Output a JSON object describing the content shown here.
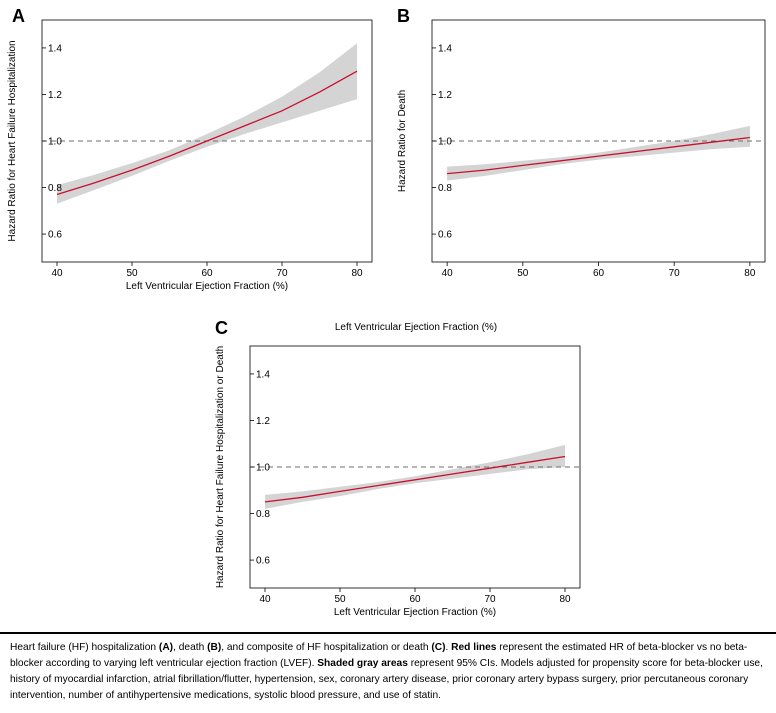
{
  "figure": {
    "floating_label": "Left Ventricular Ejection Fraction (%)"
  },
  "chart_data": [
    {
      "type": "line",
      "panel": "A",
      "xlabel": "Left Ventricular Ejection Fraction (%)",
      "ylabel": "Hazard Ratio for Heart Failure Hospitalization",
      "xlim": [
        38,
        82
      ],
      "ylim": [
        0.48,
        1.52
      ],
      "xticks": [
        40,
        50,
        60,
        70,
        80
      ],
      "yticks": [
        0.6,
        0.8,
        1.0,
        1.2,
        1.4
      ],
      "reference_line": 1.0,
      "series": [
        {
          "x": [
            40,
            45,
            50,
            55,
            60,
            65,
            70,
            75,
            80
          ],
          "y": [
            0.77,
            0.82,
            0.875,
            0.935,
            1.0,
            1.065,
            1.13,
            1.21,
            1.3
          ],
          "lower": [
            0.73,
            0.79,
            0.85,
            0.915,
            0.975,
            1.03,
            1.08,
            1.13,
            1.18
          ],
          "upper": [
            0.81,
            0.855,
            0.905,
            0.96,
            1.03,
            1.105,
            1.19,
            1.295,
            1.42
          ]
        }
      ]
    },
    {
      "type": "line",
      "panel": "B",
      "xlabel": "",
      "ylabel": "Hazard Ratio for Death",
      "xlim": [
        38,
        82
      ],
      "ylim": [
        0.48,
        1.52
      ],
      "xticks": [
        40,
        50,
        60,
        70,
        80
      ],
      "yticks": [
        0.6,
        0.8,
        1.0,
        1.2,
        1.4
      ],
      "reference_line": 1.0,
      "series": [
        {
          "x": [
            40,
            45,
            50,
            55,
            60,
            65,
            70,
            75,
            80
          ],
          "y": [
            0.86,
            0.875,
            0.895,
            0.915,
            0.935,
            0.955,
            0.975,
            0.995,
            1.015
          ],
          "lower": [
            0.83,
            0.85,
            0.875,
            0.9,
            0.92,
            0.935,
            0.95,
            0.965,
            0.975
          ],
          "upper": [
            0.89,
            0.9,
            0.915,
            0.93,
            0.95,
            0.975,
            1.0,
            1.03,
            1.065
          ]
        }
      ]
    },
    {
      "type": "line",
      "panel": "C",
      "xlabel": "Left Ventricular Ejection Fraction (%)",
      "ylabel": "Hazard Ratio for Heart Failure Hospitalization or Death",
      "xlim": [
        38,
        82
      ],
      "ylim": [
        0.48,
        1.52
      ],
      "xticks": [
        40,
        50,
        60,
        70,
        80
      ],
      "yticks": [
        0.6,
        0.8,
        1.0,
        1.2,
        1.4
      ],
      "reference_line": 1.0,
      "series": [
        {
          "x": [
            40,
            45,
            50,
            55,
            60,
            65,
            70,
            75,
            80
          ],
          "y": [
            0.85,
            0.87,
            0.895,
            0.92,
            0.945,
            0.97,
            0.995,
            1.02,
            1.045
          ],
          "lower": [
            0.82,
            0.85,
            0.875,
            0.905,
            0.93,
            0.95,
            0.97,
            0.99,
            1.0
          ],
          "upper": [
            0.88,
            0.895,
            0.915,
            0.935,
            0.96,
            0.99,
            1.02,
            1.055,
            1.095
          ]
        }
      ]
    }
  ],
  "colors": {
    "line": "#c8102e",
    "band": "#d4d4d4",
    "reference": "#6e6e6e"
  },
  "caption": {
    "t1": "Heart failure (HF) hospitalization ",
    "b1": "(A)",
    "t2": ", death ",
    "b2": "(B)",
    "t3": ", and composite of HF hospitalization or death ",
    "b3": "(C)",
    "t4": ". ",
    "b4": "Red lines",
    "t5": " represent the estimated HR of beta-blocker vs no beta-blocker according to varying left ventricular ejection fraction (LVEF). ",
    "b5": "Shaded gray areas",
    "t6": " represent 95% CIs. Models adjusted for propensity score for beta-blocker use, history of myocardial infarction, atrial fibrillation/flutter, hypertension, sex, coronary artery disease, prior coronary artery bypass surgery, prior percutaneous coronary intervention, number of antihypertensive medications, systolic blood pressure, and use of statin."
  }
}
